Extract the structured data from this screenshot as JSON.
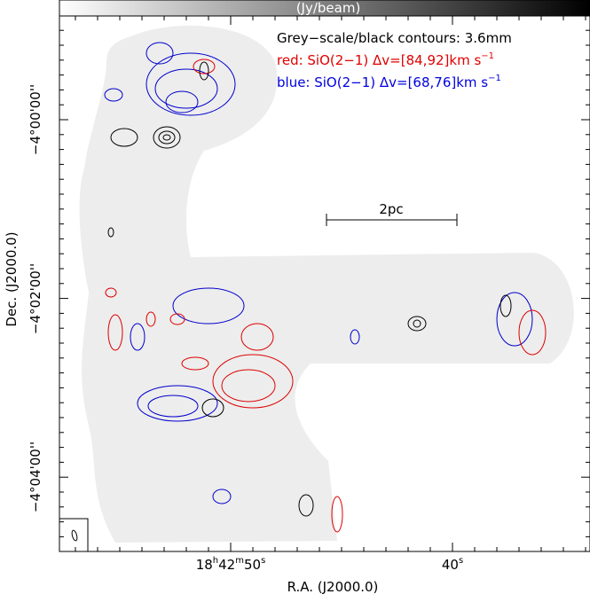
{
  "colorbar": {
    "label": "(Jy/beam)"
  },
  "legend": [
    {
      "parts": [
        "Grey−scale/black contours: 3.6mm"
      ]
    },
    {
      "parts": [
        "red: SiO(2−1) Δv=[84,92]km s",
        "−1"
      ]
    },
    {
      "parts": [
        "blue: SiO(2−1) Δv=[68,76]km s",
        "−1"
      ]
    }
  ],
  "scale_bar": {
    "label": "2pc"
  },
  "x_axis": {
    "label": "R.A. (J2000.0)",
    "ticks": [
      {
        "parts": [
          "18",
          "h",
          "42",
          "m",
          "50",
          "s"
        ]
      },
      {
        "parts": [
          "40",
          "s"
        ]
      }
    ]
  },
  "y_axis": {
    "label": "Dec. (J2000.0)",
    "ticks": [
      {
        "parts": [
          "−4°00'00''"
        ]
      },
      {
        "parts": [
          "−4°02'00''"
        ]
      },
      {
        "parts": [
          "−4°04'00''"
        ]
      }
    ]
  }
}
